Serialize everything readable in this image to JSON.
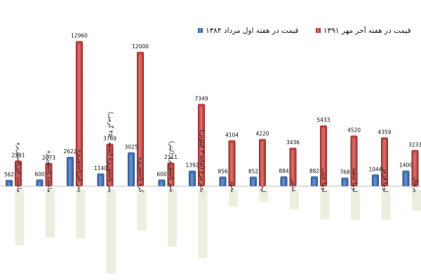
{
  "chart_data": {
    "type": "bar",
    "title": "",
    "xlabel": "",
    "ylabel": "",
    "grid": false,
    "legend_position": "top-right",
    "ylim": [
      0,
      14000
    ],
    "categories": [
      "ماست غیرپاستوریزه",
      "ماست پاستوریزه",
      "پنیر غیرپاستوریزه",
      "پنیر پاستوریزه (بسته ۴۵۰ گرمی)",
      "کره پاستوریزه",
      "شیر پاستوریزه (لیتر)",
      "تخم مرغ (شانه ۲ کیلویی)",
      "نخود",
      "لپه",
      "عدس",
      "لوبیا چیتی",
      "لوبیا سفید",
      "لوبیا قرمز",
      "پرتقال"
    ],
    "series": [
      {
        "name": "قیمت در هفته اول مرداد ۱۳۸۴",
        "color": "#3f6fb0",
        "values": [
          562,
          600,
          2622,
          1140,
          3025,
          600,
          1392,
          856,
          852,
          884,
          882,
          768,
          1044,
          1400
        ]
      },
      {
        "name": "قیمت در هفته آخر مهر ۱۳۹۱",
        "color": "#c0403c",
        "values": [
          2291,
          2073,
          12960,
          3789,
          12000,
          2111,
          7349,
          4104,
          4220,
          3436,
          5433,
          4520,
          4359,
          3233
        ]
      }
    ],
    "label_background": "#eeeee0"
  }
}
